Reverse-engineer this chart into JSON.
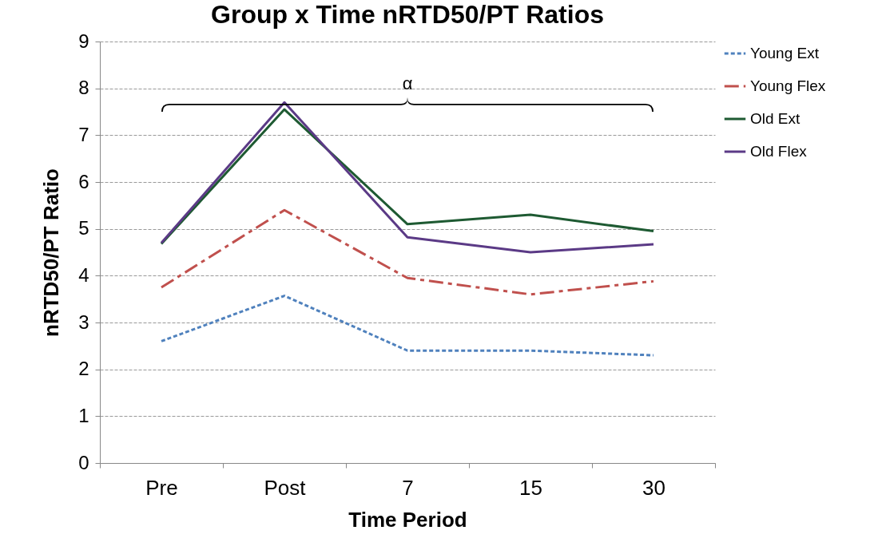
{
  "chart_data": {
    "type": "line",
    "title": "Group x Time nRTD50/PT Ratios",
    "xlabel": "Time Period",
    "ylabel": "nRTD50/PT Ratio",
    "categories": [
      "Pre",
      "Post",
      "7",
      "15",
      "30"
    ],
    "series": [
      {
        "name": "Young Ext",
        "color": "#4f81bd",
        "line_style": "dotted",
        "values": [
          2.6,
          3.57,
          2.4,
          2.4,
          2.3
        ]
      },
      {
        "name": "Young Flex",
        "color": "#c0504d",
        "line_style": "dashed",
        "values": [
          3.75,
          5.4,
          3.95,
          3.6,
          3.88
        ]
      },
      {
        "name": "Old Ext",
        "color": "#1e5a32",
        "line_style": "solid",
        "values": [
          4.68,
          7.55,
          5.1,
          5.3,
          4.95
        ]
      },
      {
        "name": "Old Flex",
        "color": "#5b3a86",
        "line_style": "solid",
        "values": [
          4.7,
          7.7,
          4.82,
          4.5,
          4.67
        ]
      }
    ],
    "ylim": [
      0,
      9
    ],
    "yticks": [
      0,
      1,
      2,
      3,
      4,
      5,
      6,
      7,
      8,
      9
    ],
    "grid": "y",
    "legend": "right",
    "marker": "none",
    "annotations": [
      "α"
    ]
  }
}
